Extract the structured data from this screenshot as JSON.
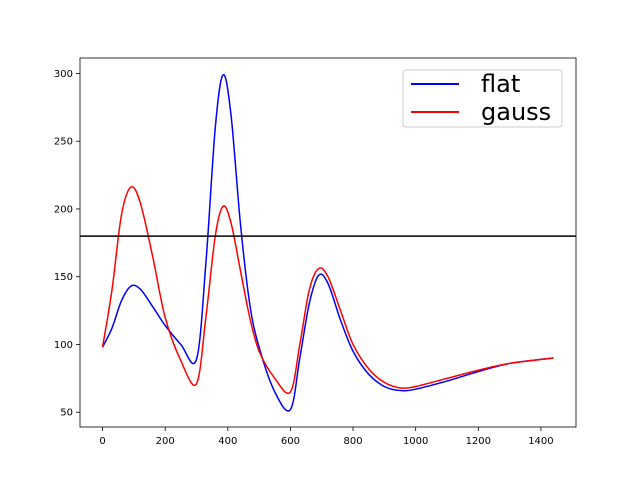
{
  "chart_data": {
    "type": "line",
    "x": [
      0,
      30,
      60,
      90,
      120,
      160,
      200,
      250,
      300,
      330,
      360,
      385,
      410,
      440,
      470,
      500,
      550,
      600,
      630,
      660,
      690,
      720,
      760,
      800,
      850,
      900,
      950,
      1000,
      1100,
      1200,
      1300,
      1440
    ],
    "series": [
      {
        "name": "flat",
        "color": "#0000ff",
        "values": [
          98,
          112,
          132,
          143,
          141,
          128,
          114,
          100,
          89,
          160,
          260,
          299,
          270,
          190,
          130,
          98,
          65,
          52,
          90,
          130,
          151,
          145,
          118,
          95,
          78,
          69,
          66,
          67,
          73,
          80,
          86,
          90
        ]
      },
      {
        "name": "gauss",
        "color": "#ff0000",
        "values": [
          98,
          140,
          195,
          216,
          205,
          165,
          120,
          88,
          71,
          120,
          180,
          202,
          190,
          155,
          120,
          95,
          75,
          65,
          100,
          140,
          156,
          150,
          125,
          100,
          82,
          72,
          68,
          69,
          75,
          81,
          86,
          90
        ]
      }
    ],
    "hline": 180,
    "hline_color": "#000000",
    "xlim": [
      -72,
      1512
    ],
    "ylim": [
      39.1,
      311.4
    ],
    "xticks": [
      0,
      200,
      400,
      600,
      800,
      1000,
      1200,
      1400
    ],
    "yticks": [
      50,
      100,
      150,
      200,
      250,
      300
    ],
    "legend": "upper right"
  }
}
